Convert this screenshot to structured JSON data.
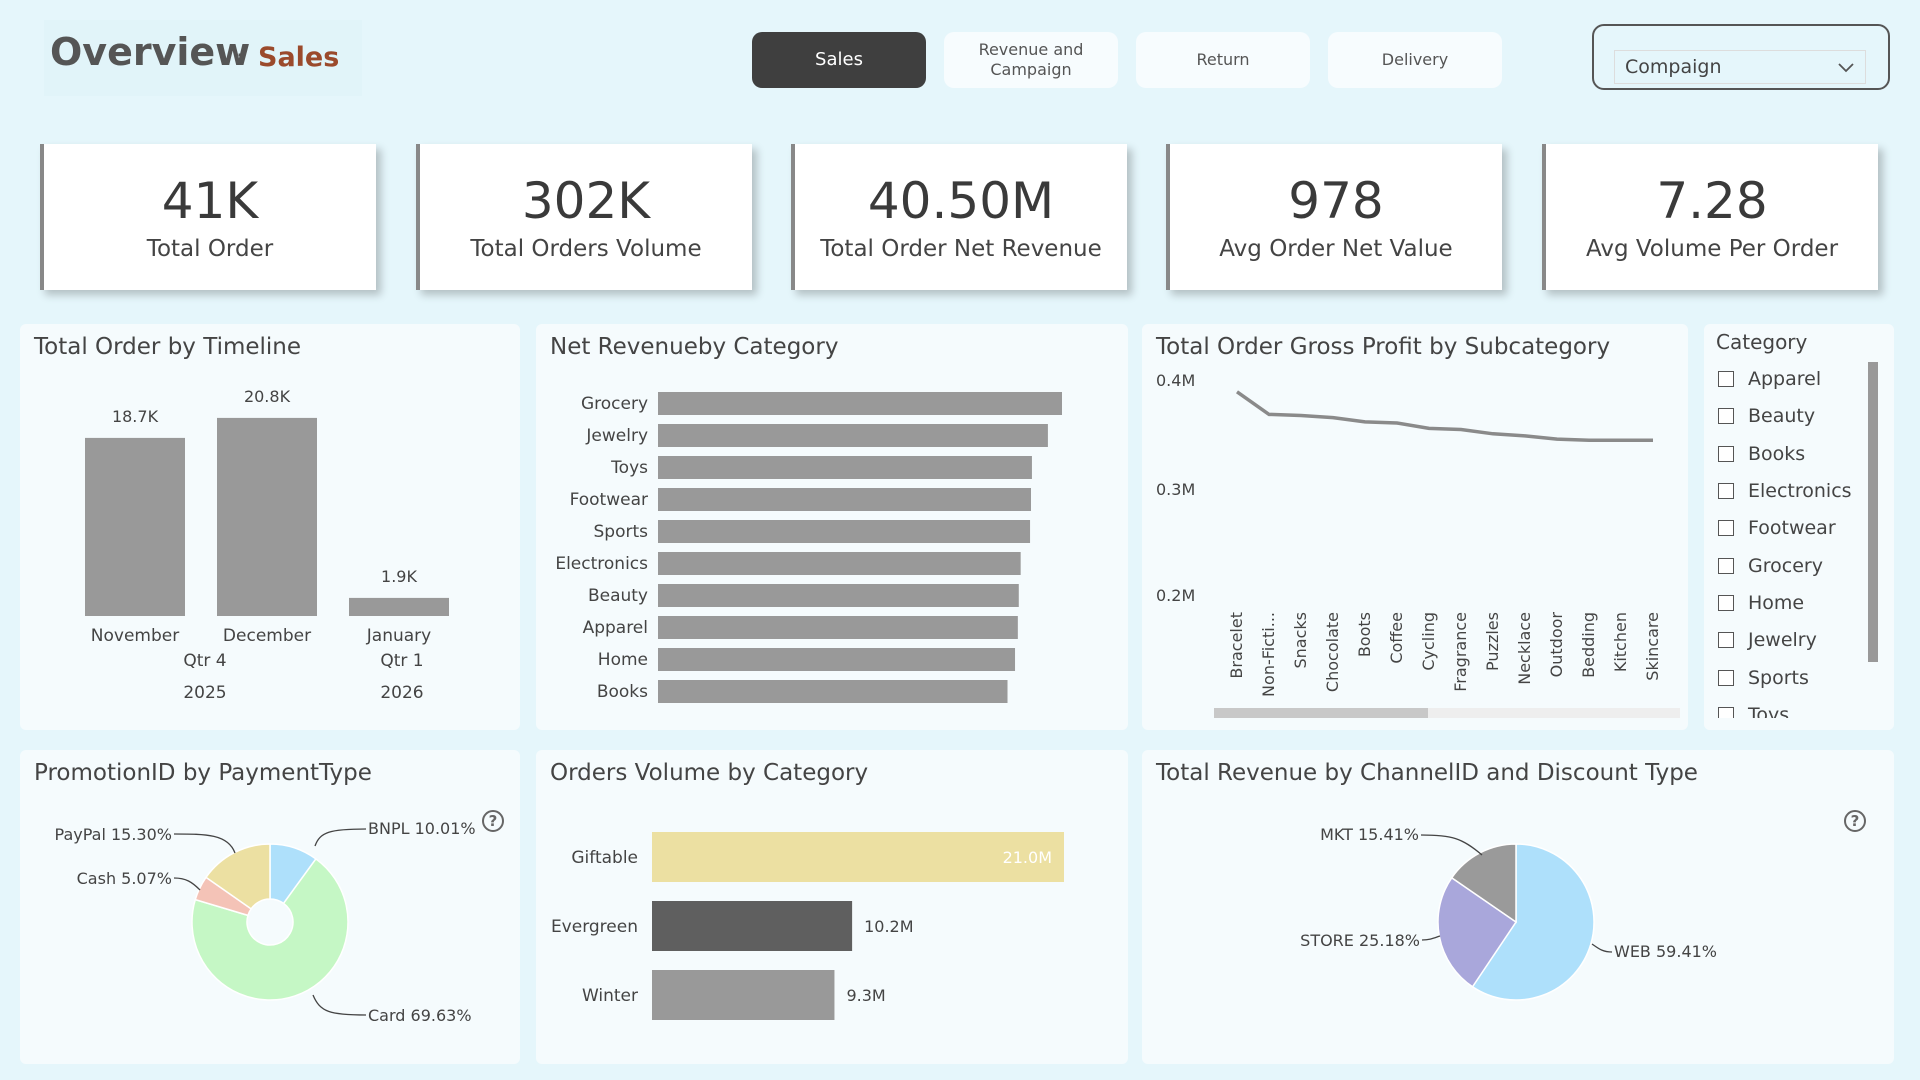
{
  "header": {
    "title": "Overview",
    "colon": ":",
    "subtitle": "Sales"
  },
  "nav": [
    {
      "label": "Sales",
      "active": true
    },
    {
      "label": "Revenue and Campaign",
      "active": false
    },
    {
      "label": "Return",
      "active": false
    },
    {
      "label": "Delivery",
      "active": false
    }
  ],
  "slicer": {
    "value": "Compaign"
  },
  "kpis": [
    {
      "value": "41K",
      "label": "Total Order"
    },
    {
      "value": "302K",
      "label": "Total Orders Volume"
    },
    {
      "value": "40.50M",
      "label": "Total Order Net Revenue"
    },
    {
      "value": "978",
      "label": "Avg Order Net Value"
    },
    {
      "value": "7.28",
      "label": "Avg Volume Per Order"
    }
  ],
  "category_filter": {
    "title": "Category",
    "items": [
      "Apparel",
      "Beauty",
      "Books",
      "Electronics",
      "Footwear",
      "Grocery",
      "Home",
      "Jewelry",
      "Sports",
      "Toys"
    ]
  },
  "colors": {
    "bar": "#999999",
    "pie_light_blue": "#aee0fb",
    "pie_green": "#c5f7c5",
    "pie_yellow": "#ece0a2",
    "pie_pink": "#f4c3b7",
    "pie_purple": "#a9a7db",
    "pie_grey": "#9a9a9a",
    "dark_bar": "#5f5f5f",
    "giftable": "#ece0a2"
  },
  "chart_data": [
    {
      "id": "timeline",
      "type": "bar",
      "title": "Total Order by Timeline",
      "categories": [
        "November",
        "December",
        "January"
      ],
      "values": [
        18.7,
        20.8,
        1.9
      ],
      "data_labels": [
        "18.7K",
        "20.8K",
        "1.9K"
      ],
      "quarters": [
        {
          "label": "Qtr 4",
          "year": "2025"
        },
        {
          "label": "Qtr 1",
          "year": "2026"
        }
      ],
      "unit": "K"
    },
    {
      "id": "net_revenue_category",
      "type": "bar",
      "orientation": "horizontal",
      "title": "Net Revenueby Category",
      "categories": [
        "Grocery",
        "Jewelry",
        "Toys",
        "Footwear",
        "Sports",
        "Electronics",
        "Beauty",
        "Apparel",
        "Home",
        "Books"
      ],
      "values": [
        4.3,
        4.15,
        3.98,
        3.97,
        3.96,
        3.86,
        3.84,
        3.83,
        3.8,
        3.72
      ]
    },
    {
      "id": "gross_profit_subcategory",
      "type": "line",
      "title": "Total Order Gross Profit by Subcategory",
      "x": [
        "Bracelet",
        "Non-Ficti...",
        "Snacks",
        "Chocolate",
        "Boots",
        "Coffee",
        "Cycling",
        "Fragrance",
        "Puzzles",
        "Necklace",
        "Outdoor",
        "Bedding",
        "Kitchen",
        "Skincare"
      ],
      "values": [
        0.389,
        0.368,
        0.367,
        0.365,
        0.361,
        0.36,
        0.355,
        0.354,
        0.35,
        0.348,
        0.345,
        0.344,
        0.344,
        0.344
      ],
      "yticks": [
        "0.4M",
        "0.3M",
        "0.2M"
      ],
      "ylim": [
        0.2,
        0.4
      ]
    },
    {
      "id": "promotion_payment",
      "type": "pie",
      "donut": true,
      "title": "PromotionID by PaymentType",
      "slices": [
        {
          "name": "BNPL",
          "value": 10.01,
          "label": "BNPL 10.01%"
        },
        {
          "name": "Card",
          "value": 69.63,
          "label": "Card 69.63%"
        },
        {
          "name": "Cash",
          "value": 5.07,
          "label": "Cash 5.07%"
        },
        {
          "name": "PayPal",
          "value": 15.3,
          "label": "PayPal 15.30%"
        }
      ]
    },
    {
      "id": "orders_volume_category",
      "type": "bar",
      "orientation": "horizontal",
      "title": "Orders Volume by Category",
      "categories": [
        "Giftable",
        "Evergreen",
        "Winter"
      ],
      "values": [
        21.0,
        10.2,
        9.3
      ],
      "data_labels": [
        "21.0M",
        "10.2M",
        "9.3M"
      ]
    },
    {
      "id": "revenue_channel",
      "type": "pie",
      "title": "Total Revenue by ChannelID and Discount Type",
      "slices": [
        {
          "name": "WEB",
          "value": 59.41,
          "label": "WEB 59.41%"
        },
        {
          "name": "STORE",
          "value": 25.18,
          "label": "STORE 25.18%"
        },
        {
          "name": "MKT",
          "value": 15.41,
          "label": "MKT 15.41%"
        }
      ]
    }
  ]
}
